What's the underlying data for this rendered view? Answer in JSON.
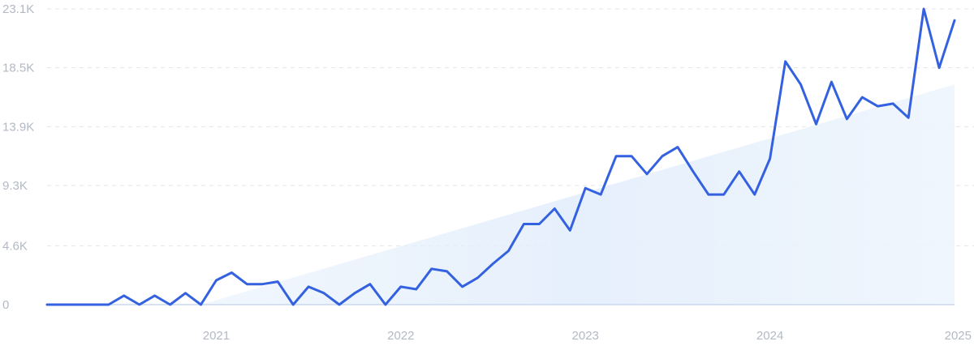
{
  "chart_data": {
    "type": "line",
    "title": "",
    "xlabel": "",
    "ylabel": "",
    "ylim": [
      0,
      23100
    ],
    "y_ticks": [
      {
        "value": 0,
        "label": "0"
      },
      {
        "value": 4600,
        "label": "4.6K"
      },
      {
        "value": 9300,
        "label": "9.3K"
      },
      {
        "value": 13900,
        "label": "13.9K"
      },
      {
        "value": 18500,
        "label": "18.5K"
      },
      {
        "value": 23100,
        "label": "23.1K"
      }
    ],
    "x_ticks": [
      {
        "value": "2021-01",
        "label": "2021"
      },
      {
        "value": "2022-01",
        "label": "2022"
      },
      {
        "value": "2023-01",
        "label": "2023"
      },
      {
        "value": "2024-01",
        "label": "2024"
      },
      {
        "value": "2025-01",
        "label": "2025"
      }
    ],
    "grid": "horizontal dashed",
    "series": [
      {
        "color": "#3461e0",
        "x": [
          "2020-02",
          "2020-03",
          "2020-04",
          "2020-05",
          "2020-06",
          "2020-07",
          "2020-08",
          "2020-09",
          "2020-10",
          "2020-11",
          "2020-12",
          "2021-01",
          "2021-02",
          "2021-03",
          "2021-04",
          "2021-05",
          "2021-06",
          "2021-07",
          "2021-08",
          "2021-09",
          "2021-10",
          "2021-11",
          "2021-12",
          "2022-01",
          "2022-02",
          "2022-03",
          "2022-04",
          "2022-05",
          "2022-06",
          "2022-07",
          "2022-08",
          "2022-09",
          "2022-10",
          "2022-11",
          "2022-12",
          "2023-01",
          "2023-02",
          "2023-03",
          "2023-04",
          "2023-05",
          "2023-06",
          "2023-07",
          "2023-08",
          "2023-09",
          "2023-10",
          "2023-11",
          "2023-12",
          "2024-01",
          "2024-02",
          "2024-03",
          "2024-04",
          "2024-05",
          "2024-06",
          "2024-07",
          "2024-08",
          "2024-09",
          "2024-10",
          "2024-11",
          "2024-12",
          "2025-01"
        ],
        "values": [
          0,
          0,
          0,
          0,
          0,
          700,
          0,
          700,
          0,
          900,
          0,
          1900,
          2500,
          1600,
          1600,
          1800,
          0,
          1400,
          900,
          0,
          900,
          1600,
          0,
          1400,
          1200,
          2800,
          2600,
          1400,
          2100,
          3200,
          4200,
          6300,
          6300,
          7500,
          5800,
          9100,
          8600,
          11600,
          11600,
          10200,
          11600,
          12300,
          10400,
          8600,
          8600,
          10400,
          8600,
          11400,
          19000,
          17200,
          14100,
          17400,
          14500,
          16200,
          15500,
          15700,
          14600,
          23100,
          18500,
          22200
        ]
      }
    ],
    "trend": {
      "color": "#e3effb",
      "from": 0,
      "to": 17200
    }
  }
}
